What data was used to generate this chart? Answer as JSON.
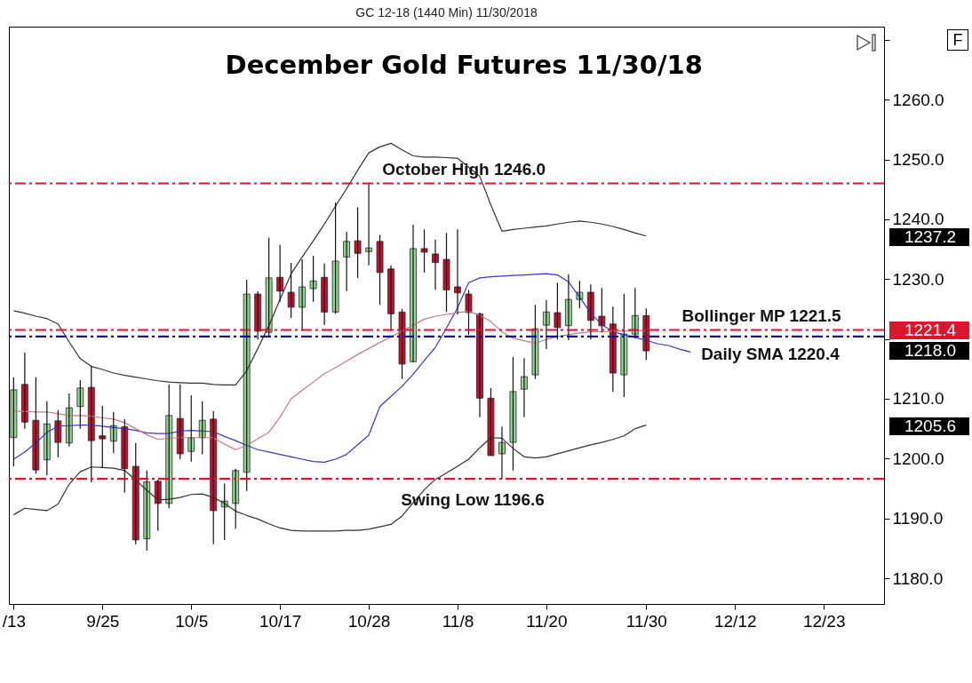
{
  "chart_data": {
    "type": "candlestick",
    "title": "December Gold Futures 11/30/18",
    "subtitle": "GC 12-18 (1440 Min)  11/30/2018",
    "categories": [
      "/13",
      null,
      null,
      null,
      null,
      null,
      null,
      null,
      "9/25",
      null,
      null,
      null,
      null,
      null,
      null,
      null,
      "10/5",
      null,
      null,
      null,
      null,
      null,
      null,
      null,
      "10/17",
      null,
      null,
      null,
      null,
      null,
      null,
      null,
      "10/28",
      null,
      null,
      null,
      null,
      null,
      null,
      null,
      "11/8",
      null,
      null,
      null,
      null,
      null,
      null,
      null,
      "11/20",
      null,
      null,
      null,
      null,
      null,
      null,
      null,
      null,
      "11/30",
      null,
      null,
      null,
      null,
      null,
      null,
      null,
      "12/12",
      null,
      null,
      null,
      null,
      null,
      null,
      null,
      "12/23",
      null,
      null,
      null,
      null,
      null
    ],
    "ohlc": [
      [
        1203.5,
        1213.6,
        1198.7,
        1211.5
      ],
      [
        1212.4,
        1217.7,
        1205.0,
        1206.1
      ],
      [
        1206.4,
        1213.6,
        1197.5,
        1198.1
      ],
      [
        1199.8,
        1209.6,
        1197.2,
        1205.8
      ],
      [
        1206.3,
        1208.1,
        1200.2,
        1202.7
      ],
      [
        1202.6,
        1210.9,
        1202.0,
        1208.5
      ],
      [
        1208.7,
        1213.1,
        1205.0,
        1211.8
      ],
      [
        1211.9,
        1215.5,
        1196.0,
        1203.0
      ],
      [
        1203.8,
        1208.8,
        1198.4,
        1203.3
      ],
      [
        1202.9,
        1207.8,
        1200.9,
        1205.5
      ],
      [
        1205.3,
        1206.6,
        1194.3,
        1198.3
      ],
      [
        1198.7,
        1202.6,
        1185.7,
        1186.4
      ],
      [
        1186.6,
        1198.0,
        1184.6,
        1196.1
      ],
      [
        1196.2,
        1196.5,
        1187.9,
        1192.5
      ],
      [
        1192.5,
        1212.4,
        1191.7,
        1207.2
      ],
      [
        1206.7,
        1212.4,
        1199.9,
        1200.8
      ],
      [
        1201.2,
        1210.6,
        1199.5,
        1203.5
      ],
      [
        1203.5,
        1209.6,
        1200.7,
        1206.4
      ],
      [
        1206.6,
        1207.9,
        1185.7,
        1191.3
      ],
      [
        1191.9,
        1195.8,
        1186.4,
        1192.9
      ],
      [
        1192.5,
        1198.3,
        1188.3,
        1198.0
      ],
      [
        1197.7,
        1229.9,
        1194.6,
        1227.5
      ],
      [
        1227.5,
        1228.0,
        1219.9,
        1221.3
      ],
      [
        1221.1,
        1236.9,
        1220.2,
        1230.2
      ],
      [
        1230.3,
        1235.7,
        1226.2,
        1228.0
      ],
      [
        1227.8,
        1232.7,
        1223.5,
        1225.3
      ],
      [
        1225.3,
        1233.3,
        1221.3,
        1228.7
      ],
      [
        1228.4,
        1233.9,
        1226.2,
        1229.7
      ],
      [
        1230.3,
        1232.6,
        1222.3,
        1224.5
      ],
      [
        1224.5,
        1242.8,
        1224.2,
        1233.0
      ],
      [
        1233.7,
        1237.9,
        1228.0,
        1236.3
      ],
      [
        1236.4,
        1242.0,
        1230.2,
        1234.3
      ],
      [
        1234.6,
        1246.0,
        1232.3,
        1235.2
      ],
      [
        1236.3,
        1237.4,
        1225.7,
        1231.1
      ],
      [
        1231.7,
        1232.3,
        1221.3,
        1224.2
      ],
      [
        1224.5,
        1225.0,
        1213.3,
        1215.8
      ],
      [
        1216.2,
        1239.1,
        1216.1,
        1235.1
      ],
      [
        1235.1,
        1238.3,
        1231.1,
        1234.5
      ],
      [
        1234.2,
        1236.6,
        1228.2,
        1232.8
      ],
      [
        1233.3,
        1237.7,
        1224.5,
        1228.2
      ],
      [
        1228.7,
        1238.3,
        1224.1,
        1227.7
      ],
      [
        1227.5,
        1228.2,
        1220.7,
        1224.4
      ],
      [
        1224.2,
        1224.4,
        1206.9,
        1210.1
      ],
      [
        1210.1,
        1211.8,
        1200.5,
        1200.5
      ],
      [
        1200.8,
        1205.3,
        1196.6,
        1202.7
      ],
      [
        1202.7,
        1217.0,
        1198.0,
        1211.2
      ],
      [
        1211.6,
        1216.8,
        1206.9,
        1213.7
      ],
      [
        1214.0,
        1225.7,
        1213.3,
        1221.7
      ],
      [
        1222.3,
        1226.5,
        1218.3,
        1224.5
      ],
      [
        1224.4,
        1229.4,
        1219.9,
        1221.9
      ],
      [
        1222.2,
        1230.8,
        1219.8,
        1226.6
      ],
      [
        1226.6,
        1229.7,
        1225.1,
        1227.8
      ],
      [
        1227.8,
        1229.1,
        1219.9,
        1223.1
      ],
      [
        1223.8,
        1228.5,
        1221.1,
        1222.2
      ],
      [
        1222.5,
        1225.4,
        1211.2,
        1214.3
      ],
      [
        1214.0,
        1227.5,
        1210.3,
        1220.8
      ],
      [
        1220.8,
        1228.5,
        1220.5,
        1223.9
      ],
      [
        1223.9,
        1225.1,
        1216.5,
        1218.0
      ],
      null,
      null,
      null,
      null,
      null,
      null,
      null,
      null,
      null,
      null,
      null,
      null,
      null,
      null,
      null,
      null,
      null,
      null,
      null,
      null,
      null
    ],
    "colors": [
      "#93d593",
      "#c8102e",
      "#c8102e",
      "#93d593",
      "#c8102e",
      "#93d593",
      "#93d593",
      "#c8102e",
      "#c8102e",
      "#93d593",
      "#c8102e",
      "#c8102e",
      "#93d593",
      "#c8102e",
      "#93d593",
      "#c8102e",
      "#93d593",
      "#93d593",
      "#c8102e",
      "#93d593",
      "#93d593",
      "#93d593",
      "#c8102e",
      "#93d593",
      "#c8102e",
      "#c8102e",
      "#93d593",
      "#93d593",
      "#c8102e",
      "#93d593",
      "#93d593",
      "#c8102e",
      "#93d593",
      "#c8102e",
      "#c8102e",
      "#c8102e",
      "#93d593",
      "#c8102e",
      "#c8102e",
      "#c8102e",
      "#c8102e",
      "#c8102e",
      "#c8102e",
      "#c8102e",
      "#93d593",
      "#93d593",
      "#93d593",
      "#93d593",
      "#93d593",
      "#c8102e",
      "#93d593",
      "#93d593",
      "#c8102e",
      "#c8102e",
      "#c8102e",
      "#93d593",
      "#93d593",
      "#c8102e",
      null,
      null,
      null,
      null,
      null,
      null,
      null,
      null,
      null,
      null,
      null,
      null,
      null,
      null,
      null,
      null,
      null,
      null,
      null,
      null,
      null
    ],
    "series": [
      {
        "type": "line",
        "color": "#333333",
        "values": [
          1224.7,
          1224.3,
          1223.8,
          1223.4,
          1222.5,
          1219.5,
          1216.7,
          1215.4,
          1214.9,
          1214.3,
          1213.9,
          1213.6,
          1213.3,
          1213.0,
          1212.8,
          1212.7,
          1212.6,
          1212.6,
          1212.4,
          1212.3,
          1212.3,
          1214.7,
          1218.4,
          1222.2,
          1226.6,
          1230.9,
          1233.7,
          1236.4,
          1239.2,
          1242.2,
          1245.1,
          1248.2,
          1251.1,
          1252.1,
          1252.7,
          1251.6,
          1250.6,
          1250.4,
          1250.4,
          1250.3,
          1250.2,
          1248.7,
          1247.2,
          1242.4,
          1238.0,
          1238.3,
          1238.5,
          1238.7,
          1238.9,
          1239.2,
          1239.5,
          1239.7,
          1239.5,
          1239.2,
          1238.8,
          1238.3,
          1237.7,
          1237.2,
          null,
          null,
          null,
          null,
          null,
          null,
          null,
          null,
          null,
          null,
          null,
          null,
          null,
          null,
          null,
          null,
          null,
          null,
          null,
          null,
          null
        ]
      },
      {
        "type": "line",
        "color": "#333333",
        "values": [
          1190.6,
          1191.7,
          1191.5,
          1191.3,
          1192.4,
          1195.7,
          1197.8,
          1198.6,
          1198.5,
          1198.4,
          1198.0,
          1196.4,
          1194.7,
          1193.1,
          1193.2,
          1193.5,
          1194.0,
          1194.1,
          1193.5,
          1192.5,
          1191.2,
          1190.5,
          1189.9,
          1189.1,
          1188.4,
          1188.0,
          1187.9,
          1187.9,
          1187.9,
          1187.9,
          1188.0,
          1188.0,
          1188.2,
          1188.6,
          1189.0,
          1190.4,
          1192.6,
          1194.8,
          1196.5,
          1197.6,
          1198.7,
          1199.9,
          1201.8,
          1203.5,
          1203.4,
          1201.7,
          1200.3,
          1200.1,
          1200.3,
          1200.8,
          1201.3,
          1201.8,
          1202.3,
          1202.7,
          1203.2,
          1203.8,
          1205.0,
          1205.6,
          null,
          null,
          null,
          null,
          null,
          null,
          null,
          null,
          null,
          null,
          null,
          null,
          null,
          null,
          null,
          null,
          null,
          null,
          null,
          null,
          null
        ]
      },
      {
        "type": "line",
        "color": "#3535cc",
        "values": [
          1199.9,
          1201.1,
          1202.6,
          1204.4,
          1205.4,
          1205.5,
          1205.6,
          1205.6,
          1205.4,
          1205.2,
          1205.0,
          1204.7,
          1204.3,
          1204.2,
          1204.2,
          1204.6,
          1204.7,
          1204.6,
          1204.5,
          1203.7,
          1203.0,
          1202.2,
          1201.5,
          1201.1,
          1200.7,
          1200.3,
          1199.9,
          1199.5,
          1199.4,
          1199.9,
          1200.7,
          1202.3,
          1203.9,
          1208.7,
          1210.4,
          1212.1,
          1214.1,
          1216.4,
          1218.6,
          1221.8,
          1225.2,
          1229.4,
          1230.2,
          1230.4,
          1230.5,
          1230.6,
          1230.7,
          1230.8,
          1230.9,
          1230.7,
          1229.5,
          1227.0,
          1224.3,
          1222.4,
          1221.2,
          1220.7,
          1220.2,
          1219.8,
          1219.2,
          1218.9,
          1218.3,
          1217.8,
          null,
          null,
          null,
          null,
          null,
          null,
          null,
          null,
          null,
          null,
          null,
          null,
          null,
          null,
          null,
          null,
          null
        ]
      },
      {
        "type": "line",
        "color": "#c87888",
        "values": [
          1207.9,
          1207.9,
          1207.8,
          1207.8,
          1207.5,
          1207.2,
          1207.2,
          1207.1,
          1206.8,
          1206.6,
          1206.0,
          1205.0,
          1204.0,
          1203.2,
          1203.4,
          1203.5,
          1203.5,
          1203.5,
          1203.5,
          1202.4,
          1201.5,
          1202.2,
          1203.3,
          1204.4,
          1206.9,
          1210.0,
          1211.4,
          1212.8,
          1214.2,
          1215.2,
          1216.3,
          1217.4,
          1218.4,
          1219.4,
          1220.3,
          1221.3,
          1222.3,
          1223.3,
          1223.8,
          1224.1,
          1224.4,
          1224.6,
          1224.0,
          1222.9,
          1221.2,
          1220.1,
          1219.7,
          1219.3,
          1219.9,
          1220.4,
          1220.7,
          1221.0,
          1221.2,
          1221.2,
          1221.3,
          1221.3,
          1221.4,
          1221.4,
          null,
          null,
          null,
          null,
          null,
          null,
          null,
          null,
          null,
          null,
          null,
          null,
          null,
          null,
          null,
          null,
          null,
          null,
          null,
          null,
          null
        ]
      }
    ],
    "ylim": [
      1175.7,
      1272.2
    ],
    "yticks": [
      {
        "value": 1180,
        "label": "1180.0"
      },
      {
        "value": 1190,
        "label": "1190.0"
      },
      {
        "value": 1200,
        "label": "1200.0"
      },
      {
        "value": 1210,
        "label": "1210.0"
      },
      {
        "value": 1220,
        "label": null
      },
      {
        "value": 1230,
        "label": "1230.0"
      },
      {
        "value": 1240,
        "label": "1240.0"
      },
      {
        "value": 1250,
        "label": "1250.0"
      },
      {
        "value": 1260,
        "label": "1260.0"
      },
      {
        "value": 1270,
        "label": null
      }
    ],
    "grid": false,
    "ref_lines": [
      {
        "axis": "y",
        "value": 1246.0,
        "label": "October High 1246.0",
        "color": "#e0102e",
        "line_style": "dashed"
      },
      {
        "axis": "y",
        "value": 1221.5,
        "label": "Bollinger MP 1221.5",
        "color": "#e0102e",
        "line_style": "dashed"
      },
      {
        "axis": "y",
        "value": 1220.4,
        "label": "Daily SMA 1220.4",
        "color": "#10109a",
        "line_style": "dashed"
      },
      {
        "axis": "y",
        "value": 1196.6,
        "label": "Swing Low 1196.6",
        "color": "#e0102e",
        "line_style": "dashed"
      }
    ],
    "annotations": [
      "1237.2",
      "1221.4",
      "1218.0",
      "1205.6",
      "F"
    ]
  }
}
